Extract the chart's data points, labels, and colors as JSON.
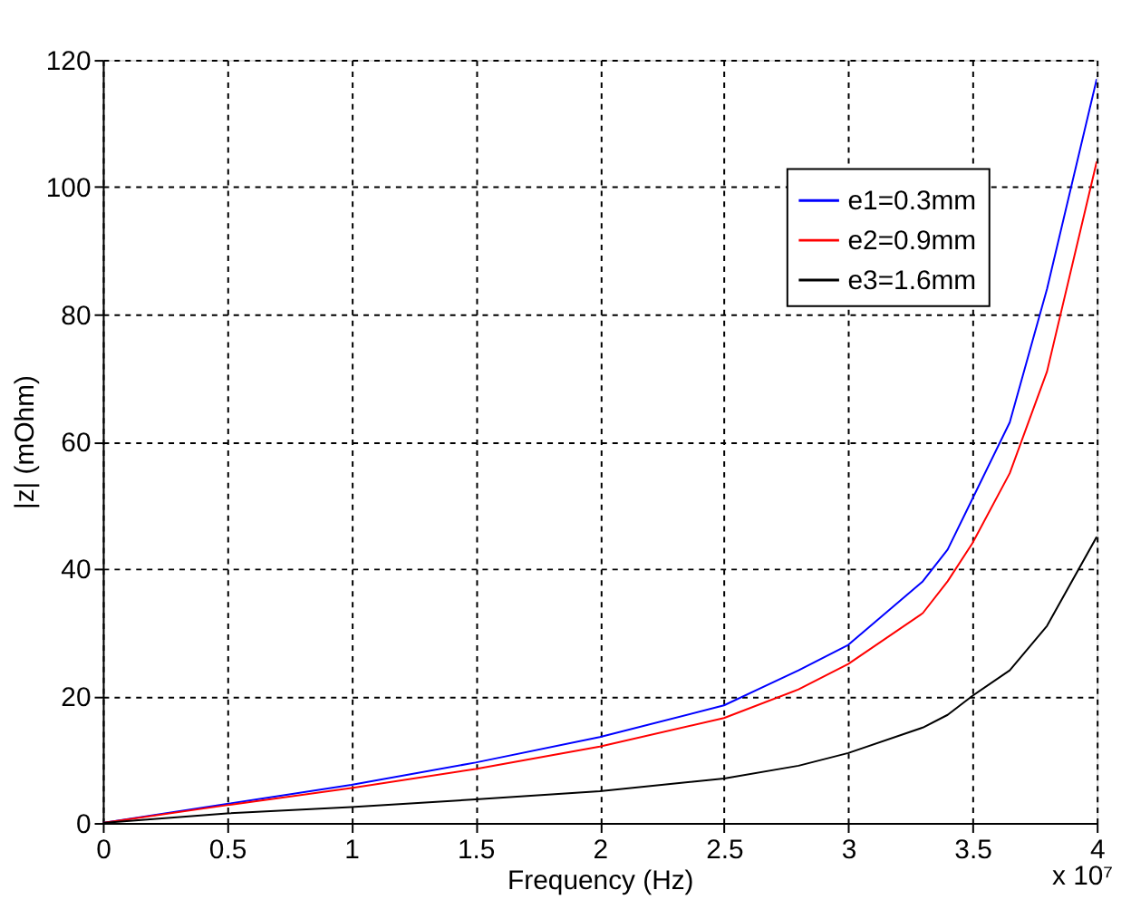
{
  "chart_data": {
    "type": "line",
    "xlabel": "Frequency (Hz)",
    "ylabel": "|z| (mOhm)",
    "x": [
      0,
      0.5,
      1,
      1.5,
      2,
      2.5,
      2.8,
      3,
      3.3,
      3.4,
      3.5,
      3.65,
      3.8,
      4
    ],
    "series": [
      {
        "name": "e1=0.3mm",
        "color": "#0000ff",
        "values": [
          0,
          3,
          6,
          9.5,
          13.5,
          18.5,
          24,
          28,
          38,
          43,
          51,
          63,
          84,
          117
        ]
      },
      {
        "name": "e2=0.9mm",
        "color": "#ff0000",
        "values": [
          0,
          2.8,
          5.5,
          8.5,
          12,
          16.5,
          21,
          25,
          33,
          38,
          44,
          55,
          71,
          104
        ]
      },
      {
        "name": "e3=1.6mm",
        "color": "#000000",
        "values": [
          0,
          1.5,
          2.5,
          3.7,
          5,
          7,
          9,
          11,
          15,
          17,
          20,
          24,
          31,
          45
        ]
      }
    ],
    "xlim": [
      0,
      4
    ],
    "xticks": [
      0,
      0.5,
      1,
      1.5,
      2,
      2.5,
      3,
      3.5,
      4
    ],
    "ylim": [
      0,
      120
    ],
    "yticks": [
      0,
      20,
      40,
      60,
      80,
      100,
      120
    ],
    "annotations": [
      "x 10⁷"
    ],
    "grid": true,
    "legend": "top right",
    "marker": "none",
    "line_style": "solid"
  }
}
